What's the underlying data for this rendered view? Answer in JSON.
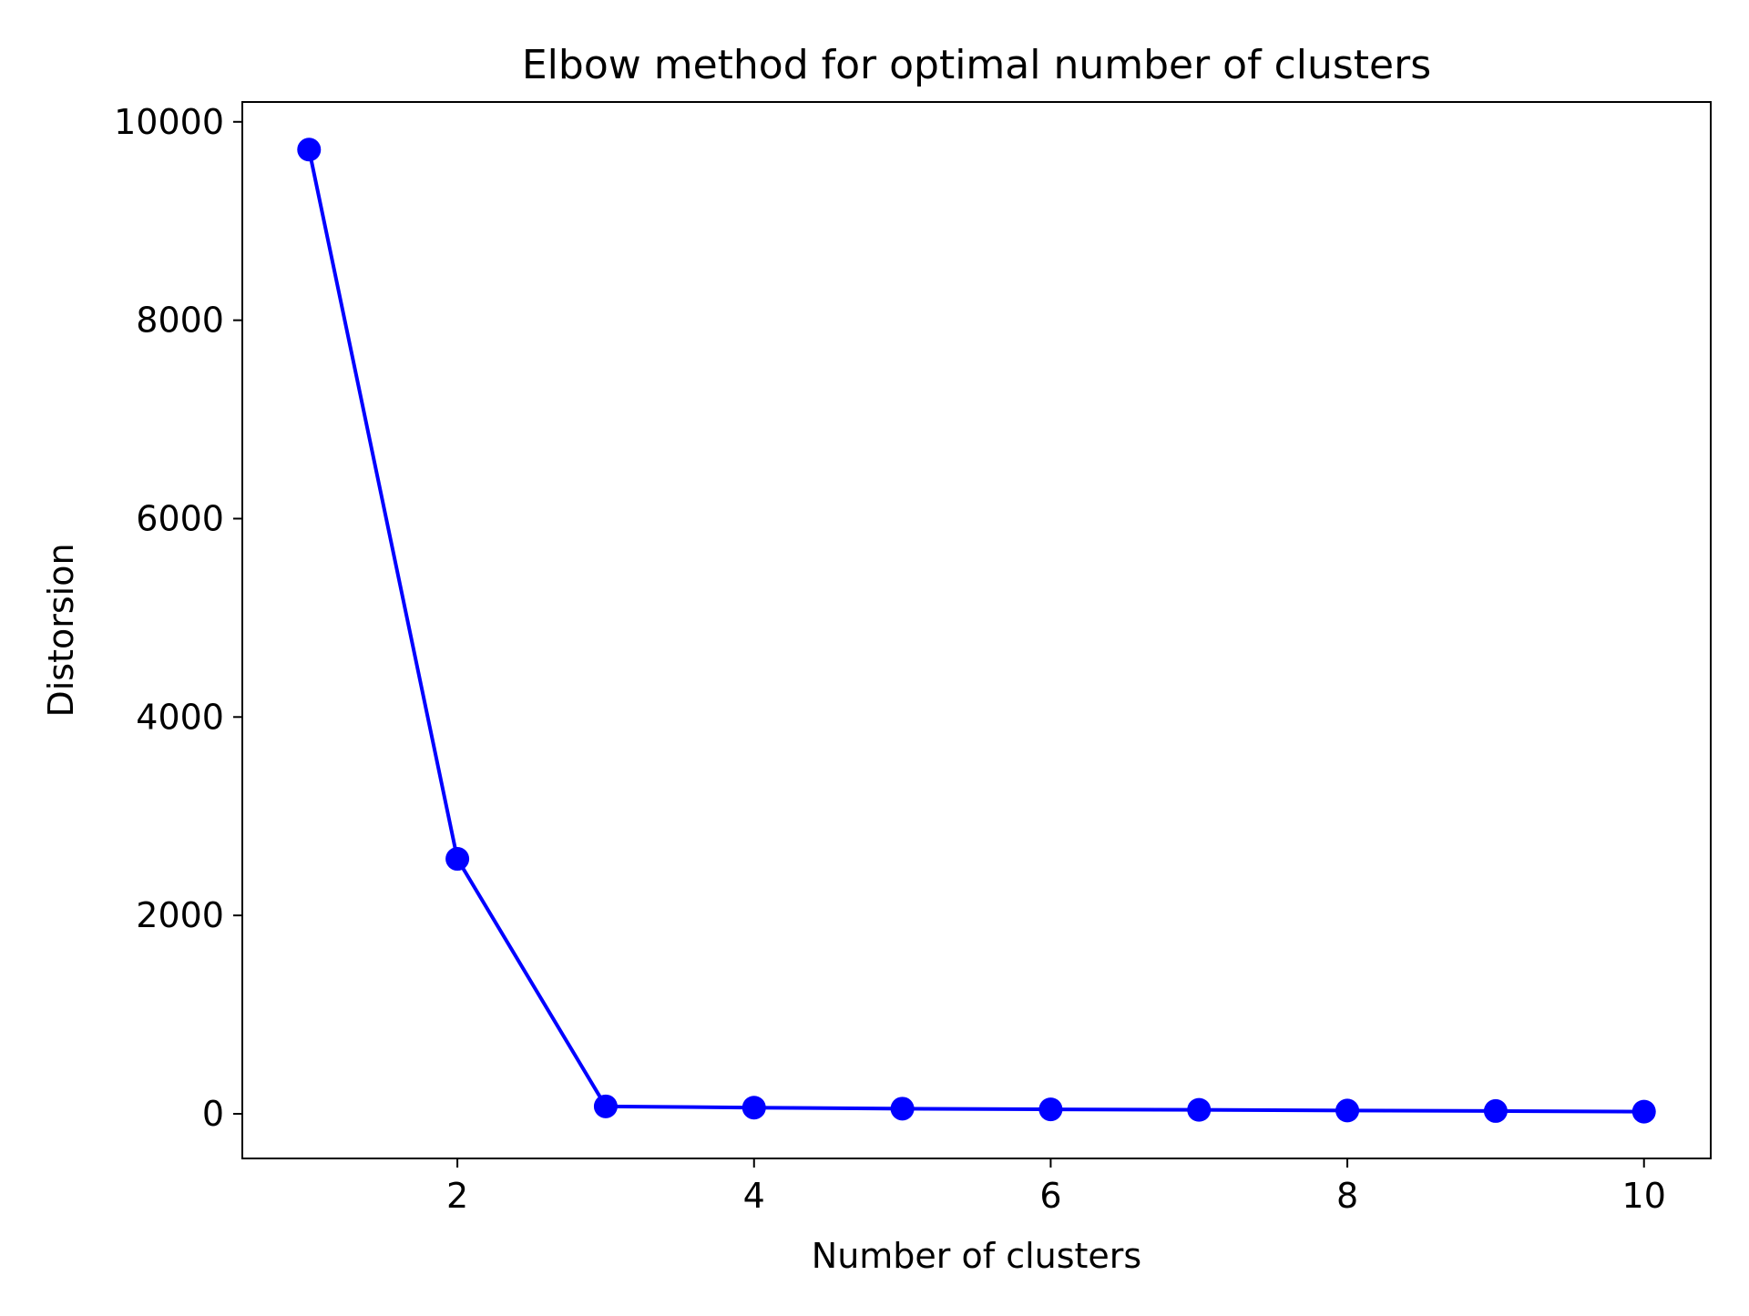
{
  "chart_data": {
    "type": "line",
    "title": "Elbow method for optimal number of clusters",
    "xlabel": "Number of clusters",
    "ylabel": "Distorsion",
    "xlim": [
      0.55,
      10.45
    ],
    "ylim": [
      -450,
      10200
    ],
    "x_ticks": [
      2,
      4,
      6,
      8,
      10
    ],
    "y_ticks": [
      0,
      2000,
      4000,
      6000,
      8000,
      10000
    ],
    "grid": false,
    "series": [
      {
        "color": "#0000ff",
        "marker": "circle",
        "x": [
          1,
          2,
          3,
          4,
          5,
          6,
          7,
          8,
          9,
          10
        ],
        "y": [
          9720,
          2570,
          75,
          62,
          52,
          45,
          40,
          33,
          28,
          22
        ]
      }
    ]
  }
}
